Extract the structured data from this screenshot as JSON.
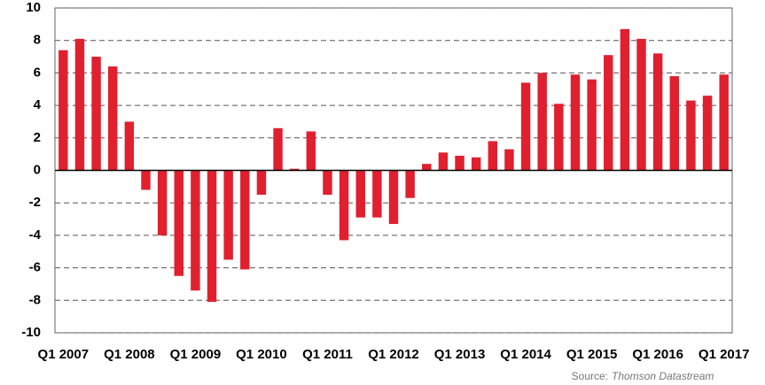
{
  "chart_data": {
    "type": "bar",
    "categories": [
      "Q1 2007",
      null,
      null,
      null,
      "Q1 2008",
      null,
      null,
      null,
      "Q1 2009",
      null,
      null,
      null,
      "Q1 2010",
      null,
      null,
      null,
      "Q1 2011",
      null,
      null,
      null,
      "Q1 2012",
      null,
      null,
      null,
      "Q1 2013",
      null,
      null,
      null,
      "Q1 2014",
      null,
      null,
      null,
      "Q1 2015",
      null,
      null,
      null,
      "Q1 2016",
      null,
      null,
      null,
      "Q1 2017"
    ],
    "values": [
      7.4,
      8.1,
      7.0,
      6.4,
      3.0,
      -1.2,
      -4.0,
      -6.5,
      -7.4,
      -8.1,
      -5.5,
      -6.1,
      -1.5,
      2.6,
      0.1,
      2.4,
      -1.5,
      -4.3,
      -2.9,
      -2.9,
      -3.3,
      -1.7,
      0.4,
      1.1,
      0.9,
      0.8,
      1.8,
      1.3,
      5.4,
      6.0,
      4.1,
      5.9,
      5.6,
      7.1,
      8.7,
      8.1,
      7.2,
      5.8,
      4.3,
      4.6,
      5.9
    ],
    "color": "#e0202f",
    "ylim": [
      -10,
      10
    ],
    "yticks": [
      -10,
      -8,
      -6,
      -4,
      -2,
      0,
      2,
      4,
      6,
      8,
      10
    ],
    "grid": true,
    "source_label": "Source:",
    "source": "Thomson Datastream"
  }
}
